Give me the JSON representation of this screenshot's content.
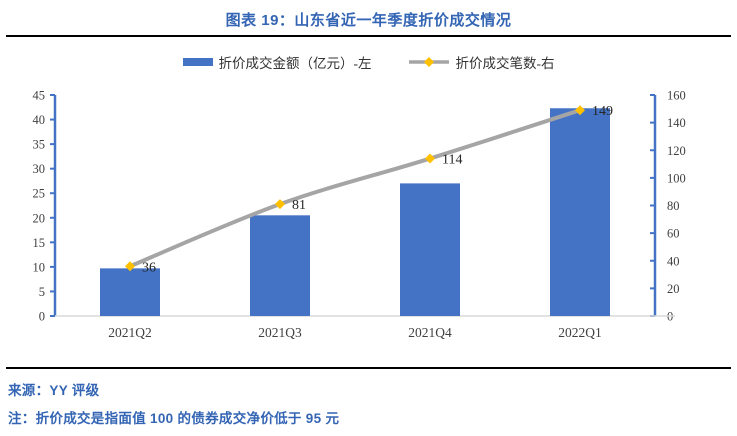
{
  "header": {
    "title": "图表 19：山东省近一年季度折价成交情况"
  },
  "footer": {
    "source": "来源：YY 评级",
    "note": "注：折价成交是指面值 100 的债券成交净价低于 95 元"
  },
  "colors": {
    "accent": "#3465B4",
    "bar": "#4472C4",
    "line": "#A5A5A5",
    "marker": "#FFC000",
    "axis": "#4472C4",
    "baseline": "#D9D9D9",
    "tick_label": "#404040",
    "data_label": "#262626"
  },
  "chart_data": {
    "type": "bar",
    "title": "图表 19：山东省近一年季度折价成交情况",
    "categories": [
      "2021Q2",
      "2021Q3",
      "2021Q4",
      "2022Q1"
    ],
    "series": [
      {
        "name": "折价成交金额（亿元）-左",
        "type": "bar",
        "axis": "left",
        "values": [
          9.7,
          20.5,
          27,
          42.3
        ]
      },
      {
        "name": "折价成交笔数-右",
        "type": "line",
        "axis": "right",
        "values": [
          36,
          81,
          114,
          149
        ],
        "data_labels": [
          "36",
          "81",
          "114",
          "149"
        ]
      }
    ],
    "y_left": {
      "min": 0,
      "max": 45,
      "step": 5
    },
    "y_right": {
      "min": 0,
      "max": 160,
      "step": 20
    },
    "xlabel": "",
    "ylabel_left": "",
    "ylabel_right": "",
    "legend_position": "top",
    "grid": false
  }
}
